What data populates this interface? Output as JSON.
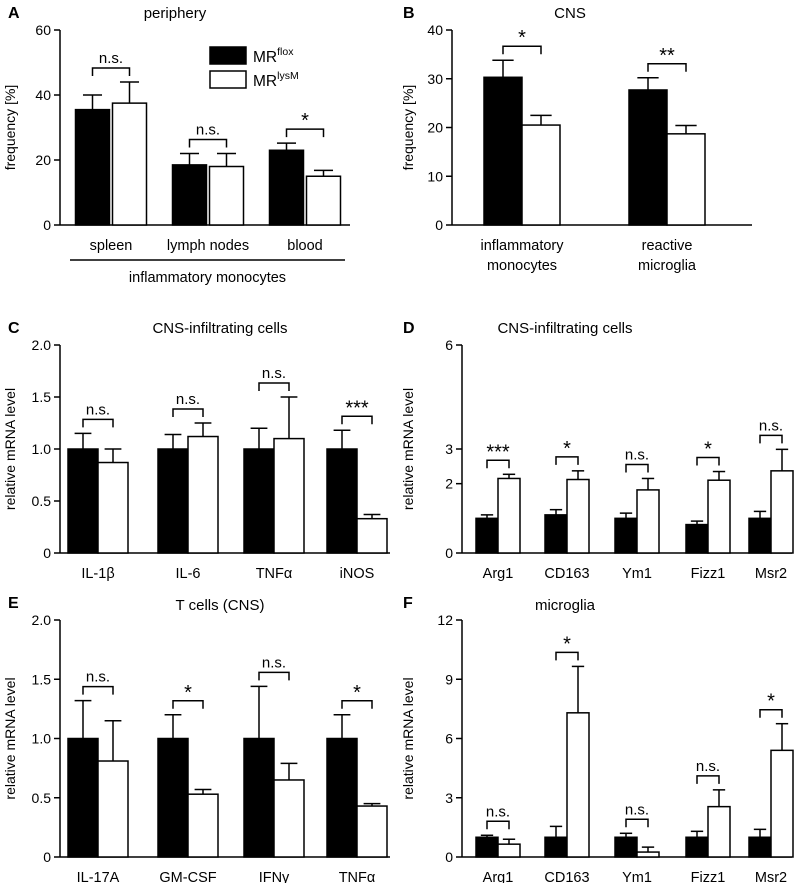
{
  "legend": [
    {
      "main": "MR",
      "sup": "flox",
      "color": "#000000"
    },
    {
      "main": "MR",
      "sup": "lysM",
      "color": "#ffffff"
    }
  ],
  "chart_data": [
    {
      "panel": "A",
      "type": "bar",
      "title": "periphery",
      "ylabel": "frequency [%]",
      "ylim": [
        0,
        60
      ],
      "yticks": [
        "0",
        "20",
        "40",
        "60"
      ],
      "categories": [
        "spleen",
        "lymph nodes",
        "blood"
      ],
      "group_label": "inflammatory monocytes",
      "series": [
        {
          "name": "MR flox",
          "values": [
            35.5,
            18.5,
            23
          ],
          "errors": [
            4.5,
            3.5,
            2.2
          ]
        },
        {
          "name": "MR lysM",
          "values": [
            37.5,
            18,
            15
          ],
          "errors": [
            6.5,
            4,
            1.8
          ]
        }
      ],
      "significance": [
        "n.s.",
        "n.s.",
        "*"
      ]
    },
    {
      "panel": "B",
      "type": "bar",
      "title": "CNS",
      "ylabel": "frequency [%]",
      "ylim": [
        0,
        40
      ],
      "yticks": [
        "0",
        "10",
        "20",
        "30",
        "40"
      ],
      "categories": [
        "inflammatory monocytes",
        "reactive microglia"
      ],
      "category_lines": [
        [
          "inflammatory",
          "monocytes"
        ],
        [
          "reactive",
          "microglia"
        ]
      ],
      "series": [
        {
          "name": "MR flox",
          "values": [
            30.3,
            27.7
          ],
          "errors": [
            3.5,
            2.5
          ]
        },
        {
          "name": "MR lysM",
          "values": [
            20.5,
            18.7
          ],
          "errors": [
            2,
            1.7
          ]
        }
      ],
      "significance": [
        "*",
        "**"
      ]
    },
    {
      "panel": "C",
      "type": "bar",
      "title": "CNS-infiltrating cells",
      "ylabel": "relative mRNA level",
      "ylim": [
        0,
        2
      ],
      "yticks": [
        "0",
        "0.5",
        "1.0",
        "1.5",
        "2.0"
      ],
      "categories": [
        "IL-1β",
        "IL-6",
        "TNFα",
        "iNOS"
      ],
      "series": [
        {
          "name": "MR flox",
          "values": [
            1.0,
            1.0,
            1.0,
            1.0
          ],
          "errors": [
            0.15,
            0.14,
            0.2,
            0.18
          ]
        },
        {
          "name": "MR lysM",
          "values": [
            0.87,
            1.12,
            1.1,
            0.33
          ],
          "errors": [
            0.13,
            0.13,
            0.4,
            0.04
          ]
        }
      ],
      "significance": [
        "n.s.",
        "n.s.",
        "n.s.",
        "***"
      ]
    },
    {
      "panel": "D",
      "type": "bar",
      "title": "CNS-infiltrating cells",
      "ylabel": "relative mRNA level",
      "ylim": [
        0,
        6
      ],
      "yticks": [
        "0",
        "2",
        "3",
        "6"
      ],
      "categories": [
        "Arg1",
        "CD163",
        "Ym1",
        "Fizz1",
        "Msr2"
      ],
      "series": [
        {
          "name": "MR flox",
          "values": [
            1.0,
            1.1,
            1.0,
            0.82,
            1.0
          ],
          "errors": [
            0.1,
            0.15,
            0.15,
            0.1,
            0.2
          ]
        },
        {
          "name": "MR lysM",
          "values": [
            2.15,
            2.12,
            1.82,
            2.1,
            2.37
          ],
          "errors": [
            0.12,
            0.25,
            0.33,
            0.25,
            0.62
          ]
        }
      ],
      "significance": [
        "***",
        "*",
        "n.s.",
        "*",
        "n.s."
      ]
    },
    {
      "panel": "E",
      "type": "bar",
      "title": "T cells (CNS)",
      "ylabel": "relative mRNA level",
      "ylim": [
        0,
        2
      ],
      "yticks": [
        "0",
        "0.5",
        "1.0",
        "1.5",
        "2.0"
      ],
      "categories": [
        "IL-17A",
        "GM-CSF",
        "IFNγ",
        "TNFα"
      ],
      "series": [
        {
          "name": "MR flox",
          "values": [
            1.0,
            1.0,
            1.0,
            1.0
          ],
          "errors": [
            0.32,
            0.2,
            0.44,
            0.2
          ]
        },
        {
          "name": "MR lysM",
          "values": [
            0.81,
            0.53,
            0.65,
            0.43
          ],
          "errors": [
            0.34,
            0.04,
            0.14,
            0.02
          ]
        }
      ],
      "significance": [
        "n.s.",
        "*",
        "n.s.",
        "*"
      ]
    },
    {
      "panel": "F",
      "type": "bar",
      "title": "microglia",
      "ylabel": "relative mRNA level",
      "ylim": [
        0,
        12
      ],
      "yticks": [
        "0",
        "3",
        "6",
        "9",
        "12"
      ],
      "categories": [
        "Arg1",
        "CD163",
        "Ym1",
        "Fizz1",
        "Msr2"
      ],
      "series": [
        {
          "name": "MR flox",
          "values": [
            1.0,
            1.0,
            1.0,
            1.0,
            1.0
          ],
          "errors": [
            0.1,
            0.55,
            0.2,
            0.3,
            0.4
          ]
        },
        {
          "name": "MR lysM",
          "values": [
            0.65,
            7.3,
            0.25,
            2.55,
            5.4
          ],
          "errors": [
            0.25,
            2.35,
            0.25,
            0.85,
            1.35
          ]
        }
      ],
      "significance": [
        "n.s.",
        "*",
        "n.s.",
        "n.s.",
        "*"
      ]
    }
  ]
}
